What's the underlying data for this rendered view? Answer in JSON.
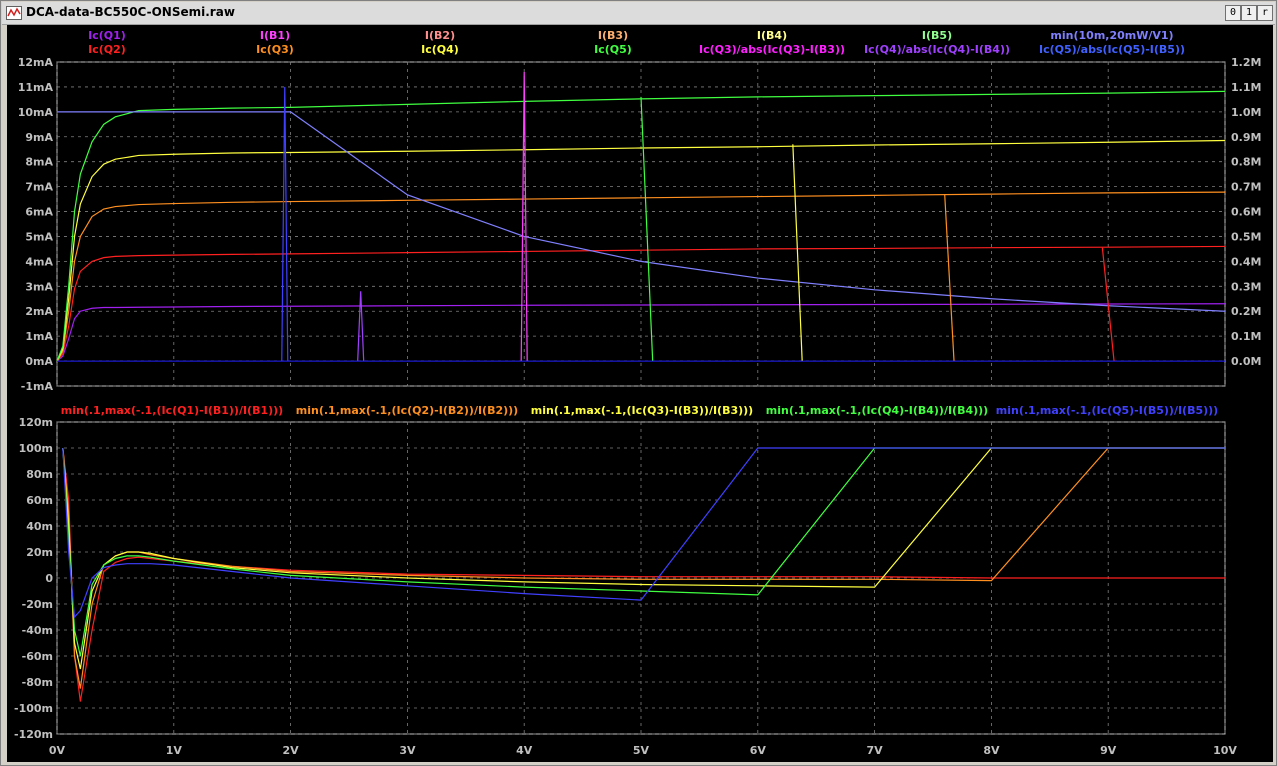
{
  "window": {
    "title": "DCA-data-BC550C-ONSemi.raw",
    "buttons": [
      "0",
      "1",
      "r"
    ]
  },
  "chart_data": [
    {
      "type": "line",
      "legend": [
        [
          "Ic(Q1)",
          "Ic(Q2)"
        ],
        [
          "I(B1)",
          "Ic(Q3)"
        ],
        [
          "I(B2)",
          "Ic(Q4)"
        ],
        [
          "I(B3)",
          "Ic(Q5)"
        ],
        [
          "I(B4)",
          "Ic(Q3)/abs(Ic(Q3)-I(B3))"
        ],
        [
          "I(B5)",
          "Ic(Q4)/abs(Ic(Q4)-I(B4))"
        ],
        [
          "min(10m,20mW/V1)",
          "Ic(Q5)/abs(Ic(Q5)-I(B5))"
        ]
      ],
      "legend_colors": [
        [
          "#a020f0",
          "#ff2020"
        ],
        [
          "#ff40ff",
          "#ff9020"
        ],
        [
          "#ff9090",
          "#ffff40"
        ],
        [
          "#ffb070",
          "#40ff40"
        ],
        [
          "#ffff90",
          "#ff20ff"
        ],
        [
          "#90ff90",
          "#a040ff"
        ],
        [
          "#8080ff",
          "#4060ff"
        ]
      ],
      "x": [
        0,
        0.05,
        0.1,
        0.15,
        0.2,
        0.3,
        0.4,
        0.5,
        0.7,
        1.0,
        1.5,
        2,
        3,
        4,
        5,
        6,
        7,
        8,
        9,
        10
      ],
      "xticks": [
        "0V",
        "1V",
        "2V",
        "3V",
        "4V",
        "5V",
        "6V",
        "7V",
        "8V",
        "9V",
        "10V"
      ],
      "xlim": [
        0,
        10
      ],
      "yticks_left": [
        "-1mA",
        "0mA",
        "1mA",
        "2mA",
        "3mA",
        "4mA",
        "5mA",
        "6mA",
        "7mA",
        "8mA",
        "9mA",
        "10mA",
        "11mA",
        "12mA"
      ],
      "ylim_left": [
        -1,
        12
      ],
      "yticks_right": [
        "0.0M",
        "0.1M",
        "0.2M",
        "0.3M",
        "0.4M",
        "0.5M",
        "0.6M",
        "0.7M",
        "0.8M",
        "0.9M",
        "1.0M",
        "1.1M",
        "1.2M"
      ],
      "ylim_right": [
        -0.1,
        1.2
      ],
      "series": [
        {
          "name": "Ic(Q1)",
          "color": "#a020f0",
          "values": [
            0,
            0.2,
            0.9,
            1.7,
            2.0,
            2.12,
            2.15,
            2.15,
            2.16,
            2.17,
            2.19,
            2.2,
            2.22,
            2.24,
            2.25,
            2.26,
            2.27,
            2.28,
            2.29,
            2.3
          ]
        },
        {
          "name": "Ic(Q2)",
          "color": "#ff2020",
          "values": [
            0,
            0.3,
            1.4,
            2.9,
            3.6,
            4.0,
            4.15,
            4.2,
            4.23,
            4.25,
            4.28,
            4.3,
            4.35,
            4.4,
            4.45,
            4.5,
            4.52,
            4.55,
            4.57,
            4.6
          ]
        },
        {
          "name": "Ic(Q3)",
          "color": "#ff9020",
          "values": [
            0,
            0.4,
            2.0,
            4.0,
            5.0,
            5.8,
            6.1,
            6.2,
            6.28,
            6.32,
            6.37,
            6.4,
            6.45,
            6.5,
            6.55,
            6.6,
            6.65,
            6.7,
            6.75,
            6.78
          ]
        },
        {
          "name": "Ic(Q4)",
          "color": "#ffff40",
          "values": [
            0,
            0.5,
            2.5,
            5.0,
            6.3,
            7.4,
            7.9,
            8.1,
            8.25,
            8.3,
            8.35,
            8.37,
            8.42,
            8.48,
            8.55,
            8.6,
            8.67,
            8.72,
            8.78,
            8.85
          ]
        },
        {
          "name": "Ic(Q5)",
          "color": "#40ff40",
          "values": [
            0,
            0.6,
            3.0,
            6.0,
            7.5,
            8.8,
            9.5,
            9.8,
            10.05,
            10.1,
            10.15,
            10.18,
            10.3,
            10.42,
            10.52,
            10.6,
            10.65,
            10.7,
            10.75,
            10.82
          ]
        },
        {
          "name": "min(10m,20mW/V1)",
          "color": "#8080ff",
          "values": [
            10,
            10,
            10,
            10,
            10,
            10,
            10,
            10,
            10,
            10,
            10,
            10,
            6.67,
            5.0,
            4.0,
            3.33,
            2.86,
            2.5,
            2.22,
            2.0
          ]
        }
      ],
      "steps": [
        {
          "name": "I(B1)",
          "color": "#4040ff",
          "x": 1.95,
          "height": 11.0
        },
        {
          "name": "I(B2)",
          "color": "#a040ff",
          "x": 2.6,
          "height": 2.8
        },
        {
          "name": "I(B3)",
          "color": "#ff40ff",
          "x": 4.0,
          "height": 11.6
        },
        {
          "name": "Ic(Q5)/abs(Ic(Q5)-I(B5))",
          "color": "#40ff40",
          "x": 5.0,
          "drop_to": 5.1,
          "level": 10.6
        },
        {
          "name": "Ic(Q4)/abs(Ic(Q4)-I(B4))",
          "color": "#ffff40",
          "x": 6.3,
          "drop_to": 6.38,
          "level": 8.7
        },
        {
          "name": "Ic(Q3)/abs(Ic(Q3)-I(B3))",
          "color": "#ff9020",
          "x": 7.6,
          "drop_to": 7.68,
          "level": 6.7
        },
        {
          "name": "Ic(Q2)/abs(Ic(Q2)-I(B2))",
          "color": "#ff2020",
          "x": 8.95,
          "drop_to": 9.05,
          "level": 4.55
        }
      ]
    },
    {
      "type": "line",
      "legend": [
        "min(.1,max(-.1,(Ic(Q1)-I(B1))/I(B1)))",
        "min(.1,max(-.1,(Ic(Q2)-I(B2))/I(B2)))",
        "min(.1,max(-.1,(Ic(Q3)-I(B3))/I(B3)))",
        "min(.1,max(-.1,(Ic(Q4)-I(B4))/I(B4)))",
        "min(.1,max(-.1,(Ic(Q5)-I(B5))/I(B5)))"
      ],
      "legend_colors": [
        "#ff2020",
        "#ff9020",
        "#ffff40",
        "#40ff40",
        "#4040ff"
      ],
      "xticks": [
        "0V",
        "1V",
        "2V",
        "3V",
        "4V",
        "5V",
        "6V",
        "7V",
        "8V",
        "9V",
        "10V"
      ],
      "xlim": [
        0,
        10
      ],
      "yticks": [
        "-120m",
        "-100m",
        "-80m",
        "-60m",
        "-40m",
        "-20m",
        "0",
        "20m",
        "40m",
        "60m",
        "80m",
        "100m",
        "120m"
      ],
      "ylim": [
        -120,
        120
      ],
      "x": [
        0.05,
        0.1,
        0.15,
        0.2,
        0.3,
        0.4,
        0.5,
        0.6,
        0.7,
        0.8,
        1.0,
        1.5,
        2,
        3,
        4,
        5,
        6,
        7,
        8,
        9,
        10
      ],
      "series": [
        {
          "name": "min(.1,max(-.1,(Ic(Q1)-I(B1))/I(B1)))",
          "color": "#ff2020",
          "values": [
            100,
            60,
            -60,
            -95,
            -40,
            5,
            12,
            15,
            16,
            15,
            13,
            9,
            6,
            3,
            2,
            1,
            1,
            1,
            0,
            0,
            0
          ]
        },
        {
          "name": "min(.1,max(-.1,(Ic(Q2)-I(B2))/I(B2)))",
          "color": "#ff9020",
          "values": [
            100,
            50,
            -60,
            -85,
            -20,
            10,
            17,
            20,
            20,
            18,
            15,
            9,
            5,
            2,
            0,
            -1,
            -1,
            -1,
            -2,
            100,
            100
          ]
        },
        {
          "name": "min(.1,max(-.1,(Ic(Q3)-I(B3))/I(B3)))",
          "color": "#ffff40",
          "values": [
            100,
            40,
            -50,
            -70,
            -10,
            10,
            17,
            20,
            20,
            19,
            15,
            8,
            4,
            0,
            -3,
            -5,
            -6,
            -7,
            100,
            100,
            100
          ]
        },
        {
          "name": "min(.1,max(-.1,(Ic(Q4)-I(B4))/I(B4)))",
          "color": "#40ff40",
          "values": [
            100,
            30,
            -40,
            -60,
            -5,
            10,
            15,
            17,
            17,
            16,
            13,
            7,
            2,
            -3,
            -7,
            -10,
            -13,
            100,
            100,
            100,
            100
          ]
        },
        {
          "name": "min(.1,max(-.1,(Ic(Q5)-I(B5))/I(B5)))",
          "color": "#4040ff",
          "values": [
            100,
            20,
            -30,
            -25,
            0,
            8,
            10,
            11,
            11,
            11,
            10,
            5,
            0,
            -6,
            -12,
            -17,
            100,
            100,
            100,
            100,
            100
          ]
        }
      ]
    }
  ]
}
